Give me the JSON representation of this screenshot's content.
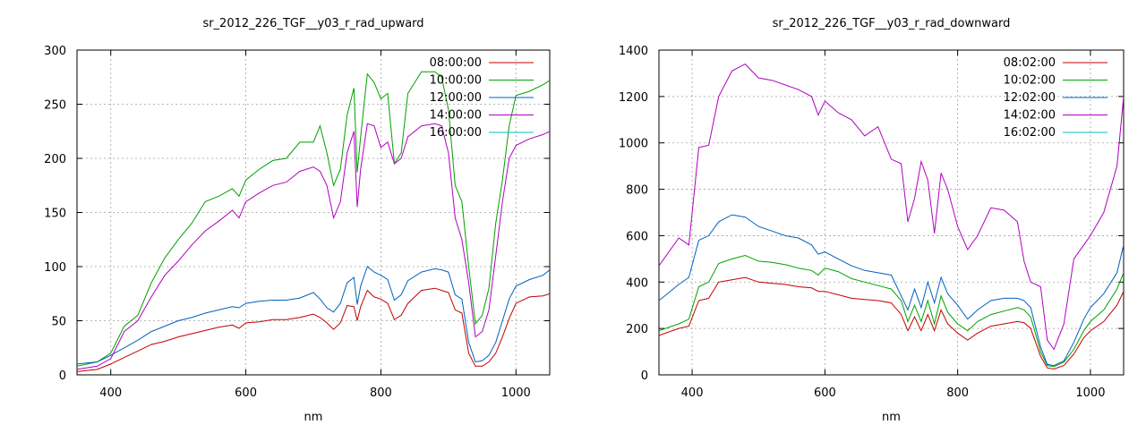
{
  "chart_data": [
    {
      "type": "line",
      "title": "sr_2012_226_TGF__y03_r_rad_upward",
      "xlabel": "nm",
      "ylabel": "",
      "xlim": [
        350,
        1050
      ],
      "ylim": [
        0,
        300
      ],
      "xticks": [
        400,
        600,
        800,
        1000
      ],
      "yticks": [
        0,
        50,
        100,
        150,
        200,
        250,
        300
      ],
      "grid": true,
      "legend": "top-right",
      "series": [
        {
          "name": "08:00:00",
          "color": "#c00000",
          "x": [
            350,
            380,
            400,
            420,
            440,
            460,
            480,
            500,
            520,
            540,
            560,
            580,
            590,
            600,
            620,
            640,
            660,
            680,
            700,
            710,
            720,
            730,
            740,
            750,
            760,
            765,
            770,
            780,
            790,
            800,
            810,
            820,
            830,
            840,
            860,
            880,
            890,
            900,
            910,
            920,
            930,
            940,
            950,
            960,
            970,
            980,
            990,
            1000,
            1020,
            1040,
            1050
          ],
          "y": [
            3,
            5,
            10,
            16,
            22,
            28,
            31,
            35,
            38,
            41,
            44,
            46,
            43,
            48,
            49,
            51,
            51,
            53,
            56,
            53,
            48,
            42,
            48,
            64,
            63,
            50,
            63,
            78,
            72,
            70,
            66,
            51,
            55,
            66,
            78,
            80,
            78,
            76,
            60,
            57,
            20,
            8,
            8,
            12,
            20,
            35,
            52,
            66,
            72,
            73,
            75
          ]
        },
        {
          "name": "10:00:00",
          "color": "#00a000",
          "x": [
            350,
            380,
            400,
            420,
            440,
            460,
            480,
            500,
            520,
            540,
            560,
            580,
            590,
            600,
            620,
            640,
            660,
            680,
            700,
            710,
            720,
            730,
            740,
            750,
            760,
            765,
            770,
            780,
            790,
            800,
            810,
            820,
            830,
            840,
            860,
            880,
            890,
            900,
            910,
            920,
            930,
            940,
            950,
            960,
            970,
            980,
            990,
            1000,
            1020,
            1040,
            1050
          ],
          "y": [
            8,
            12,
            20,
            45,
            55,
            85,
            108,
            125,
            140,
            160,
            165,
            172,
            165,
            180,
            190,
            198,
            200,
            215,
            215,
            230,
            205,
            175,
            190,
            240,
            265,
            187,
            220,
            278,
            270,
            255,
            260,
            195,
            205,
            260,
            280,
            280,
            275,
            245,
            175,
            160,
            100,
            47,
            55,
            80,
            140,
            180,
            230,
            258,
            262,
            268,
            272
          ]
        },
        {
          "name": "12:00:00",
          "color": "#0060c0",
          "x": [
            350,
            380,
            400,
            420,
            440,
            460,
            480,
            500,
            520,
            540,
            560,
            580,
            590,
            600,
            620,
            640,
            660,
            680,
            700,
            710,
            720,
            730,
            740,
            750,
            760,
            765,
            770,
            780,
            790,
            800,
            810,
            820,
            830,
            840,
            860,
            880,
            890,
            900,
            910,
            920,
            930,
            940,
            950,
            960,
            970,
            980,
            990,
            1000,
            1020,
            1040,
            1050
          ],
          "y": [
            10,
            12,
            18,
            25,
            32,
            40,
            45,
            50,
            53,
            57,
            60,
            63,
            62,
            66,
            68,
            69,
            69,
            71,
            76,
            70,
            62,
            58,
            66,
            85,
            90,
            65,
            82,
            100,
            95,
            92,
            88,
            69,
            74,
            87,
            95,
            98,
            97,
            95,
            74,
            70,
            30,
            12,
            13,
            18,
            30,
            50,
            70,
            82,
            88,
            92,
            97
          ]
        },
        {
          "name": "14:00:00",
          "color": "#b000c0",
          "x": [
            350,
            380,
            400,
            420,
            440,
            460,
            480,
            500,
            520,
            540,
            560,
            580,
            590,
            600,
            620,
            640,
            660,
            680,
            700,
            710,
            720,
            730,
            740,
            750,
            760,
            765,
            770,
            780,
            790,
            800,
            810,
            820,
            830,
            840,
            860,
            880,
            890,
            900,
            910,
            920,
            930,
            940,
            950,
            960,
            970,
            980,
            990,
            1000,
            1020,
            1040,
            1050
          ],
          "y": [
            5,
            8,
            15,
            40,
            50,
            72,
            92,
            105,
            120,
            133,
            142,
            152,
            145,
            160,
            168,
            175,
            178,
            188,
            192,
            188,
            175,
            145,
            160,
            205,
            225,
            155,
            190,
            232,
            230,
            210,
            215,
            195,
            200,
            220,
            230,
            232,
            230,
            205,
            145,
            125,
            85,
            35,
            40,
            60,
            110,
            160,
            200,
            212,
            218,
            222,
            225
          ]
        },
        {
          "name": "16:00:00",
          "color": "#00c0c0",
          "x": [],
          "y": []
        }
      ]
    },
    {
      "type": "line",
      "title": "sr_2012_226_TGF__y03_r_rad_downward",
      "xlabel": "nm",
      "ylabel": "",
      "xlim": [
        350,
        1050
      ],
      "ylim": [
        0,
        1400
      ],
      "xticks": [
        400,
        600,
        800,
        1000
      ],
      "yticks": [
        0,
        200,
        400,
        600,
        800,
        1000,
        1200,
        1400
      ],
      "grid": true,
      "legend": "top-right",
      "series": [
        {
          "name": "08:02:00",
          "color": "#c00000",
          "x": [
            350,
            380,
            395,
            410,
            425,
            440,
            460,
            480,
            500,
            520,
            540,
            560,
            580,
            590,
            600,
            620,
            640,
            660,
            680,
            700,
            715,
            725,
            735,
            745,
            755,
            765,
            775,
            785,
            800,
            815,
            830,
            850,
            870,
            890,
            900,
            910,
            925,
            935,
            945,
            960,
            975,
            990,
            1000,
            1020,
            1040,
            1050
          ],
          "y": [
            170,
            200,
            210,
            320,
            330,
            400,
            410,
            420,
            400,
            395,
            390,
            380,
            375,
            360,
            360,
            345,
            330,
            325,
            320,
            310,
            260,
            190,
            250,
            190,
            260,
            190,
            280,
            220,
            180,
            150,
            180,
            210,
            220,
            230,
            225,
            200,
            80,
            30,
            25,
            40,
            90,
            160,
            190,
            230,
            300,
            360
          ]
        },
        {
          "name": "10:02:00",
          "color": "#00a000",
          "x": [
            350,
            380,
            395,
            410,
            425,
            440,
            460,
            480,
            500,
            520,
            540,
            560,
            580,
            590,
            600,
            620,
            640,
            660,
            680,
            700,
            715,
            725,
            735,
            745,
            755,
            765,
            775,
            785,
            800,
            815,
            830,
            850,
            870,
            890,
            900,
            910,
            925,
            935,
            945,
            960,
            975,
            990,
            1000,
            1020,
            1040,
            1050
          ],
          "y": [
            190,
            220,
            240,
            380,
            400,
            480,
            500,
            515,
            490,
            485,
            475,
            460,
            450,
            430,
            460,
            445,
            415,
            400,
            385,
            370,
            320,
            230,
            300,
            230,
            320,
            220,
            340,
            270,
            220,
            190,
            230,
            260,
            275,
            290,
            280,
            250,
            100,
            40,
            35,
            55,
            110,
            190,
            230,
            280,
            370,
            440
          ]
        },
        {
          "name": "12:02:00",
          "color": "#0060c0",
          "x": [
            350,
            380,
            395,
            410,
            425,
            440,
            460,
            480,
            500,
            520,
            540,
            560,
            580,
            590,
            600,
            620,
            640,
            660,
            680,
            700,
            715,
            725,
            735,
            745,
            755,
            765,
            775,
            785,
            800,
            815,
            830,
            850,
            870,
            890,
            900,
            910,
            925,
            935,
            945,
            960,
            975,
            990,
            1000,
            1020,
            1040,
            1050
          ],
          "y": [
            320,
            390,
            420,
            580,
            600,
            660,
            690,
            680,
            640,
            620,
            600,
            590,
            560,
            520,
            530,
            500,
            470,
            450,
            440,
            430,
            340,
            280,
            370,
            290,
            400,
            310,
            420,
            350,
            300,
            240,
            280,
            320,
            330,
            330,
            320,
            290,
            120,
            45,
            40,
            60,
            140,
            240,
            290,
            350,
            440,
            560
          ]
        },
        {
          "name": "14:02:00",
          "color": "#b000c0",
          "x": [
            350,
            380,
            395,
            410,
            425,
            440,
            460,
            480,
            500,
            520,
            540,
            560,
            580,
            590,
            600,
            620,
            640,
            660,
            680,
            700,
            715,
            725,
            735,
            745,
            755,
            765,
            775,
            785,
            800,
            815,
            830,
            850,
            870,
            890,
            900,
            910,
            925,
            935,
            945,
            960,
            975,
            990,
            1000,
            1020,
            1040,
            1050
          ],
          "y": [
            470,
            590,
            560,
            980,
            990,
            1200,
            1310,
            1340,
            1280,
            1270,
            1250,
            1230,
            1200,
            1120,
            1180,
            1130,
            1100,
            1030,
            1070,
            930,
            910,
            660,
            760,
            920,
            840,
            610,
            870,
            800,
            640,
            540,
            600,
            720,
            710,
            660,
            490,
            400,
            380,
            150,
            110,
            220,
            500,
            560,
            600,
            700,
            900,
            1200
          ]
        },
        {
          "name": "16:02:00",
          "color": "#00c0c0",
          "x": [],
          "y": []
        }
      ]
    }
  ]
}
